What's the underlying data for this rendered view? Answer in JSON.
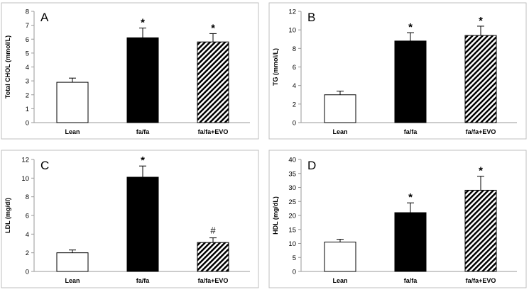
{
  "colors": {
    "border": "#bfbfbf",
    "axis": "#999999",
    "bar_lean": "#ffffff",
    "bar_fafa": "#000000",
    "bar_evo_stripe": "#000000",
    "text": "#000000"
  },
  "chart_data": [
    {
      "type": "bar",
      "panel_label": "A",
      "categories": [
        "Lean",
        "fa/fa",
        "fa/fa+EVO"
      ],
      "values": [
        2.9,
        6.1,
        5.8
      ],
      "errors": [
        0.3,
        0.7,
        0.6
      ],
      "annotations": [
        "",
        "*",
        "*"
      ],
      "ylabel": "Total CHOL (mmol/L)",
      "ylim": [
        0,
        8
      ],
      "yticks": [
        0,
        1,
        2,
        3,
        4,
        5,
        6,
        7,
        8
      ],
      "title": ""
    },
    {
      "type": "bar",
      "panel_label": "B",
      "categories": [
        "Lean",
        "fa/fa",
        "fa/fa+EVO"
      ],
      "values": [
        3.0,
        8.8,
        9.4
      ],
      "errors": [
        0.4,
        0.9,
        1.0
      ],
      "annotations": [
        "",
        "*",
        "*"
      ],
      "ylabel": "TG (mmol/L)",
      "ylim": [
        0,
        12
      ],
      "yticks": [
        0,
        2,
        4,
        6,
        8,
        10,
        12
      ],
      "title": ""
    },
    {
      "type": "bar",
      "panel_label": "C",
      "categories": [
        "Lean",
        "fa/fa",
        "fa/fa+EVO"
      ],
      "values": [
        2.0,
        10.1,
        3.1
      ],
      "errors": [
        0.3,
        1.2,
        0.5
      ],
      "annotations": [
        "",
        "*",
        "#"
      ],
      "ylabel": "LDL (mg/dl)",
      "ylim": [
        0,
        12
      ],
      "yticks": [
        0,
        2,
        4,
        6,
        8,
        10,
        12
      ],
      "title": ""
    },
    {
      "type": "bar",
      "panel_label": "D",
      "categories": [
        "Lean",
        "fa/fa",
        "fa/fa+EVO"
      ],
      "values": [
        10.5,
        21.0,
        29.0
      ],
      "errors": [
        1.0,
        3.5,
        5.0
      ],
      "annotations": [
        "",
        "*",
        "*"
      ],
      "ylabel": "HDL (mg/dL)",
      "ylim": [
        0,
        40
      ],
      "yticks": [
        0,
        5,
        10,
        15,
        20,
        25,
        30,
        35,
        40
      ],
      "title": ""
    }
  ]
}
